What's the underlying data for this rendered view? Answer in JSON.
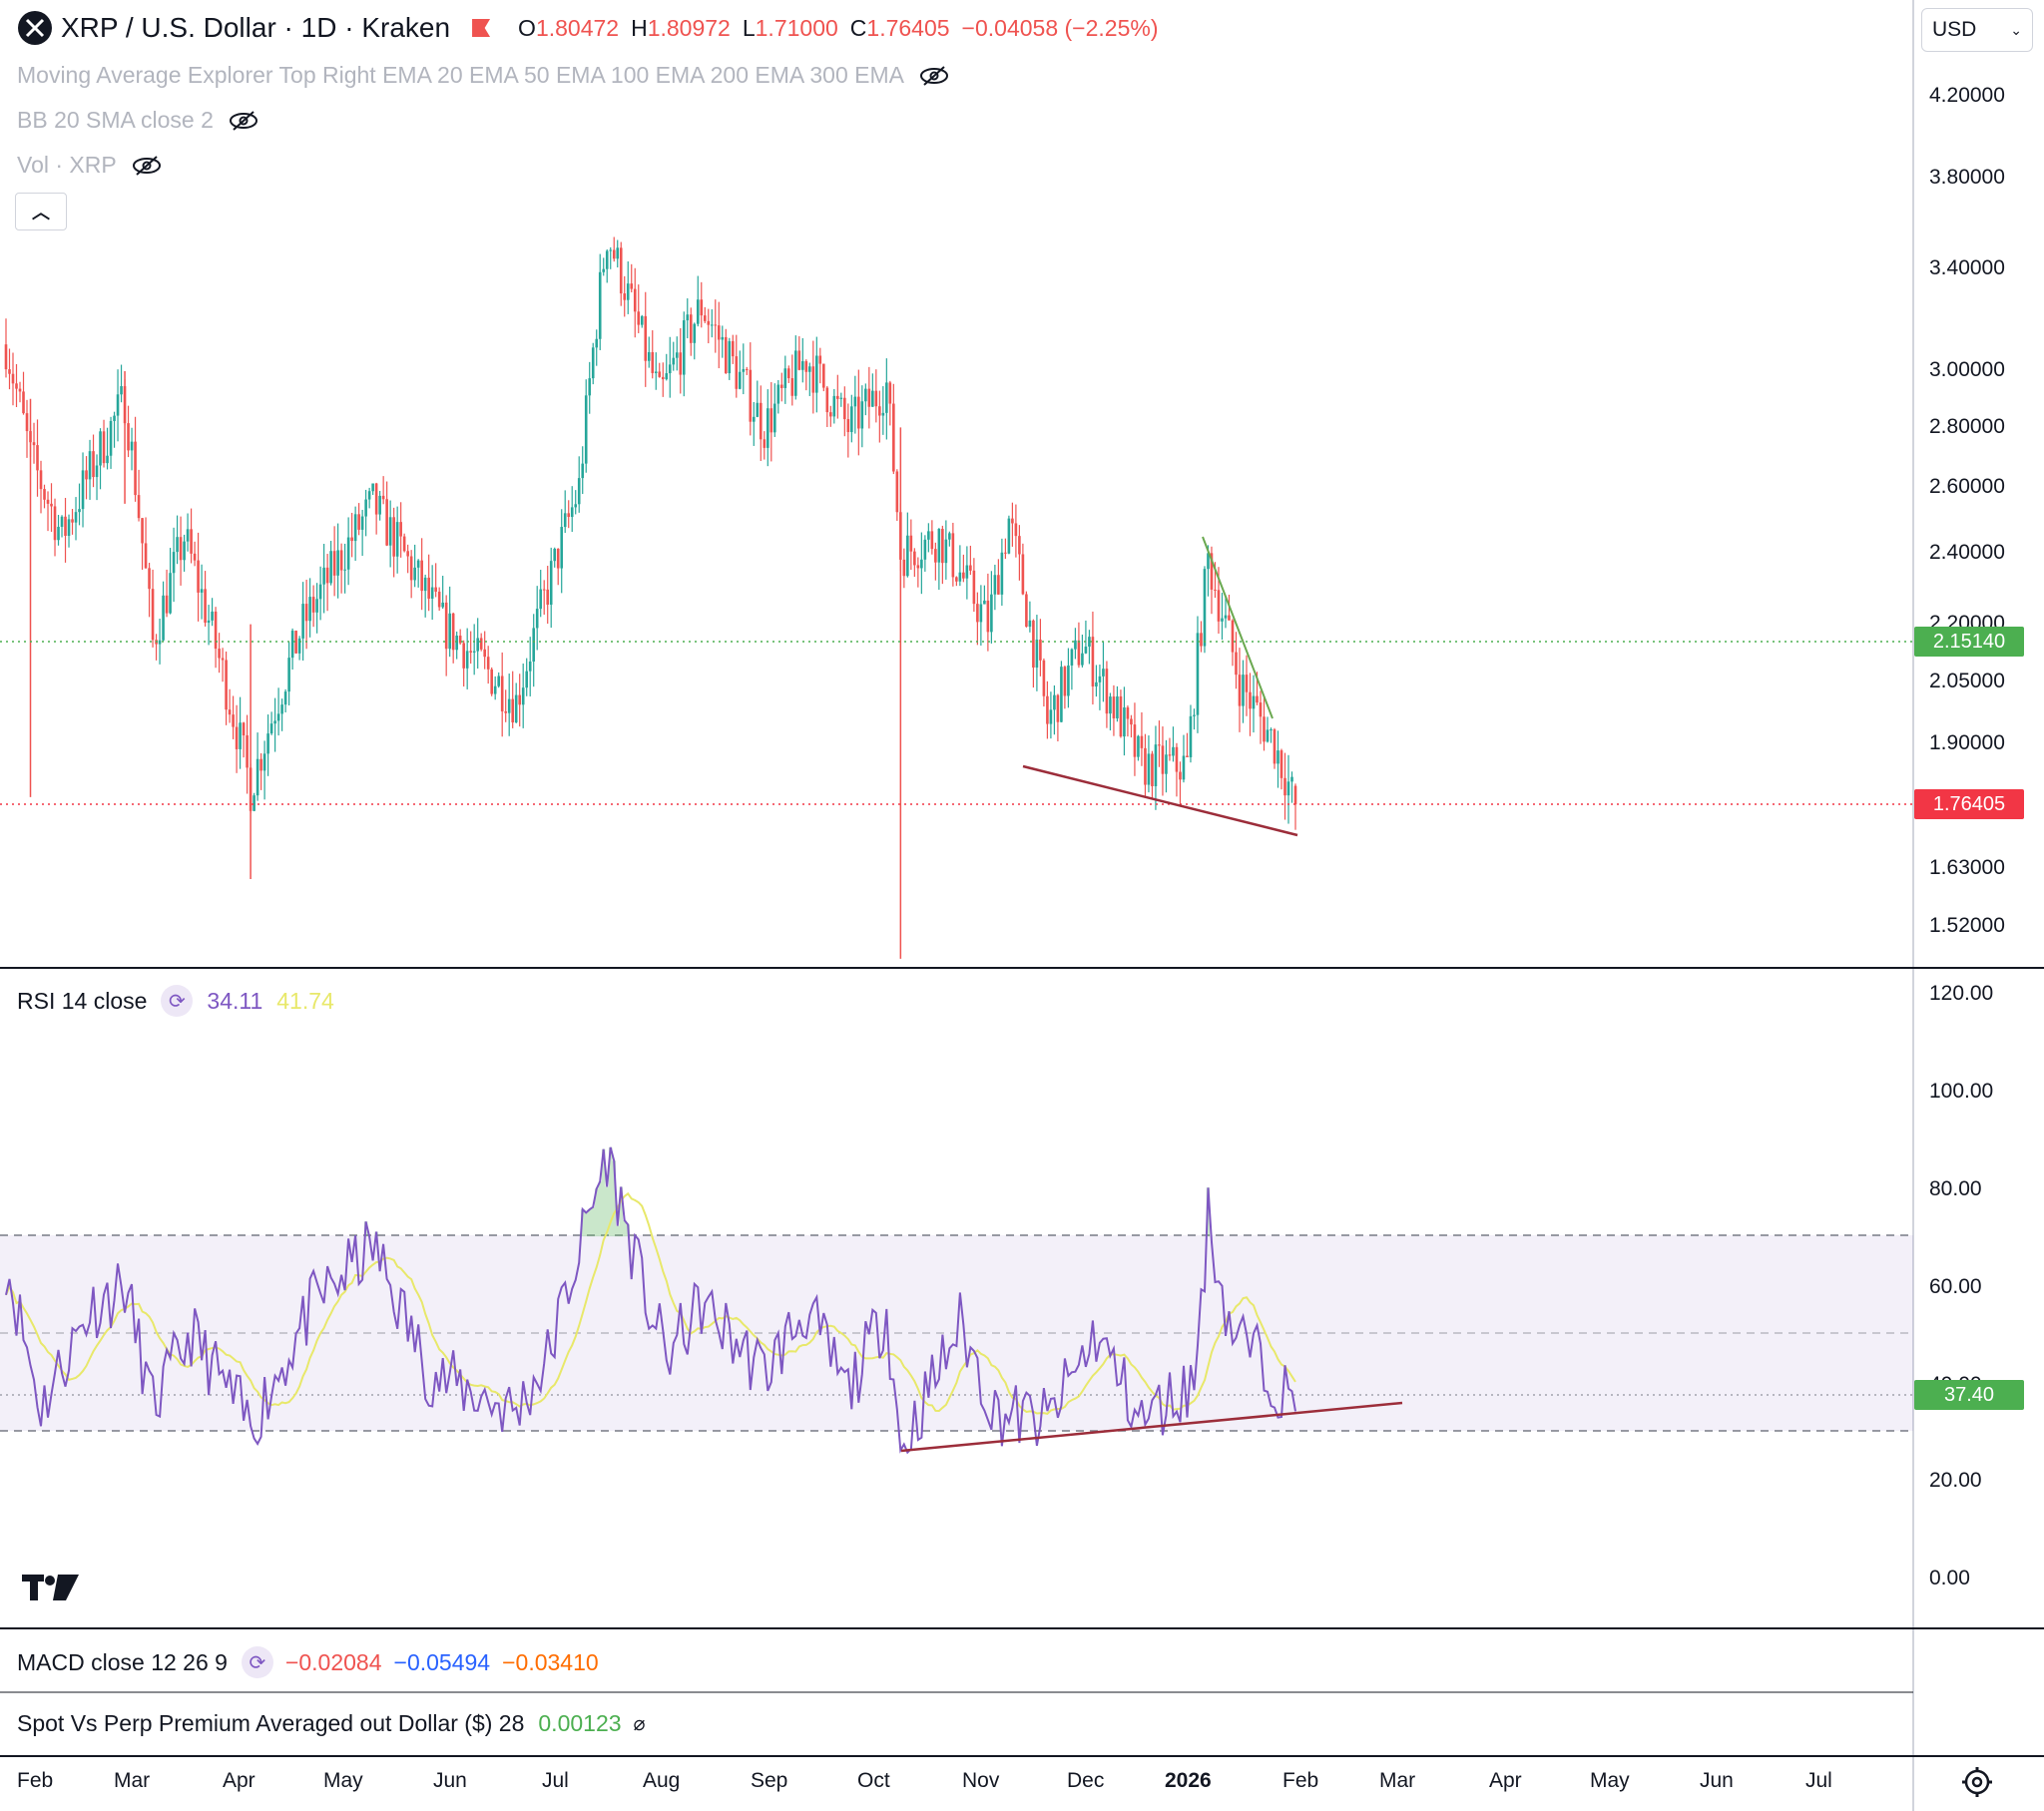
{
  "header": {
    "symbol_title": "XRP / U.S. Dollar · 1D · Kraken",
    "ohlc": {
      "o_label": "O",
      "o": "1.80472",
      "h_label": "H",
      "h": "1.80972",
      "l_label": "L",
      "l": "1.71000",
      "c_label": "C",
      "c": "1.76405",
      "change": "−0.04058 (−2.25%)"
    },
    "currency": "USD"
  },
  "indicators": {
    "ma_explorer": "Moving Average Explorer Top Right EMA 20 EMA 50 EMA 100 EMA 200 EMA 300 EMA",
    "bb": "BB 20 SMA close 2",
    "vol": "Vol · XRP"
  },
  "price_axis": {
    "ticks": [
      "4.20000",
      "3.80000",
      "3.40000",
      "3.00000",
      "2.80000",
      "2.60000",
      "2.40000",
      "2.20000",
      "2.05000",
      "1.90000",
      "1.63000",
      "1.52000"
    ],
    "scale": "log",
    "green_line_value": "2.15140",
    "current_value": "1.76405"
  },
  "rsi": {
    "label": "RSI 14 close",
    "value": "34.11",
    "ma_value": "41.74",
    "axis_ticks": [
      "120.00",
      "100.00",
      "80.00",
      "60.00",
      "40.00",
      "20.00",
      "0.00"
    ],
    "current_badge": "37.40",
    "upper_band": 70,
    "middle_band": 50,
    "lower_band": 30
  },
  "macd": {
    "label": "MACD close 12 26 9",
    "v1": "−0.02084",
    "v2": "−0.05494",
    "v3": "−0.03410"
  },
  "premium": {
    "label": "Spot Vs Perp Premium Averaged out Dollar ($) 28",
    "value": "0.00123",
    "icon": "⌀"
  },
  "time_axis": {
    "months": [
      "Feb",
      "Mar",
      "Apr",
      "May",
      "Jun",
      "Jul",
      "Aug",
      "Sep",
      "Oct",
      "Nov",
      "Dec",
      "2026",
      "Feb",
      "Mar",
      "Apr",
      "May",
      "Jun",
      "Jul"
    ]
  },
  "colors": {
    "up": "#26a69a",
    "down": "#ef5350",
    "green_badge": "#4caf50",
    "red_badge": "#f23645",
    "rsi_line": "#7e57c2",
    "rsi_ma": "#e8e86a",
    "rsi_band_fill": "#7e57c2",
    "trendline_red": "#9c2d3a",
    "trendline_green": "#6aa84f"
  },
  "chart_data": {
    "type": "candlestick",
    "title": "XRP / U.S. Dollar · 1D · Kraken",
    "timeframe": "1D",
    "x_range": [
      "2025-01-27",
      "2026-01-31"
    ],
    "ylim": [
      1.46,
      4.4
    ],
    "yscale": "log",
    "ohlc_last": {
      "open": 1.80472,
      "high": 1.80972,
      "low": 1.71,
      "close": 1.76405
    },
    "approx_close_path": [
      {
        "date": "2025-01-27",
        "close": 3.1
      },
      {
        "date": "2025-02-03",
        "close": 2.7
      },
      {
        "date": "2025-02-12",
        "close": 2.45
      },
      {
        "date": "2025-03-02",
        "close": 2.9
      },
      {
        "date": "2025-03-10",
        "close": 2.15
      },
      {
        "date": "2025-03-19",
        "close": 2.45
      },
      {
        "date": "2025-04-07",
        "close": 1.8
      },
      {
        "date": "2025-04-22",
        "close": 2.2
      },
      {
        "date": "2025-05-12",
        "close": 2.55
      },
      {
        "date": "2025-06-01",
        "close": 2.2
      },
      {
        "date": "2025-06-22",
        "close": 2.0
      },
      {
        "date": "2025-07-10",
        "close": 2.6
      },
      {
        "date": "2025-07-18",
        "close": 3.55
      },
      {
        "date": "2025-08-02",
        "close": 2.9
      },
      {
        "date": "2025-08-14",
        "close": 3.25
      },
      {
        "date": "2025-09-01",
        "close": 2.8
      },
      {
        "date": "2025-09-13",
        "close": 3.05
      },
      {
        "date": "2025-09-25",
        "close": 2.8
      },
      {
        "date": "2025-10-06",
        "close": 2.95
      },
      {
        "date": "2025-10-10",
        "close": 2.4
      },
      {
        "date": "2025-10-21",
        "close": 2.45
      },
      {
        "date": "2025-11-04",
        "close": 2.2
      },
      {
        "date": "2025-11-10",
        "close": 2.5
      },
      {
        "date": "2025-11-21",
        "close": 1.95
      },
      {
        "date": "2025-12-01",
        "close": 2.15
      },
      {
        "date": "2025-12-18",
        "close": 1.85
      },
      {
        "date": "2025-12-31",
        "close": 1.85
      },
      {
        "date": "2026-01-06",
        "close": 2.38
      },
      {
        "date": "2026-01-15",
        "close": 2.05
      },
      {
        "date": "2026-01-25",
        "close": 1.9
      },
      {
        "date": "2026-01-31",
        "close": 1.76405
      }
    ],
    "annotations": [
      {
        "type": "descending_support",
        "from": {
          "date": "2025-11-18",
          "price": 1.87
        },
        "to": {
          "date": "2026-01-31",
          "price": 1.7
        }
      },
      {
        "type": "descending_resistance",
        "from": {
          "date": "2026-01-06",
          "price": 2.45
        },
        "to": {
          "date": "2026-01-24",
          "price": 1.97
        }
      }
    ],
    "rsi_series": {
      "ylim": [
        0,
        120
      ],
      "approx_points": [
        {
          "date": "2025-01-27",
          "rsi": 65
        },
        {
          "date": "2025-02-06",
          "rsi": 35
        },
        {
          "date": "2025-02-20",
          "rsi": 55
        },
        {
          "date": "2025-03-02",
          "rsi": 60
        },
        {
          "date": "2025-03-10",
          "rsi": 35
        },
        {
          "date": "2025-03-21",
          "rsi": 50
        },
        {
          "date": "2025-04-07",
          "rsi": 31
        },
        {
          "date": "2025-04-25",
          "rsi": 56
        },
        {
          "date": "2025-05-12",
          "rsi": 68
        },
        {
          "date": "2025-05-28",
          "rsi": 42
        },
        {
          "date": "2025-06-22",
          "rsi": 34
        },
        {
          "date": "2025-07-01",
          "rsi": 45
        },
        {
          "date": "2025-07-18",
          "rsi": 87
        },
        {
          "date": "2025-07-28",
          "rsi": 60
        },
        {
          "date": "2025-08-04",
          "rsi": 45
        },
        {
          "date": "2025-08-14",
          "rsi": 56
        },
        {
          "date": "2025-09-01",
          "rsi": 42
        },
        {
          "date": "2025-09-13",
          "rsi": 55
        },
        {
          "date": "2025-09-25",
          "rsi": 38
        },
        {
          "date": "2025-10-06",
          "rsi": 55
        },
        {
          "date": "2025-10-10",
          "rsi": 26
        },
        {
          "date": "2025-10-27",
          "rsi": 52
        },
        {
          "date": "2025-11-06",
          "rsi": 34
        },
        {
          "date": "2025-11-21",
          "rsi": 32
        },
        {
          "date": "2025-12-05",
          "rsi": 50
        },
        {
          "date": "2025-12-18",
          "rsi": 32
        },
        {
          "date": "2026-01-02",
          "rsi": 40
        },
        {
          "date": "2026-01-06",
          "rsi": 74
        },
        {
          "date": "2026-01-12",
          "rsi": 52
        },
        {
          "date": "2026-01-24",
          "rsi": 42
        },
        {
          "date": "2026-01-31",
          "rsi": 34.11
        }
      ],
      "trendline": {
        "from": {
          "date": "2025-10-10",
          "rsi": 26
        },
        "to": {
          "date": "2026-02-28",
          "rsi": 37
        }
      }
    }
  }
}
